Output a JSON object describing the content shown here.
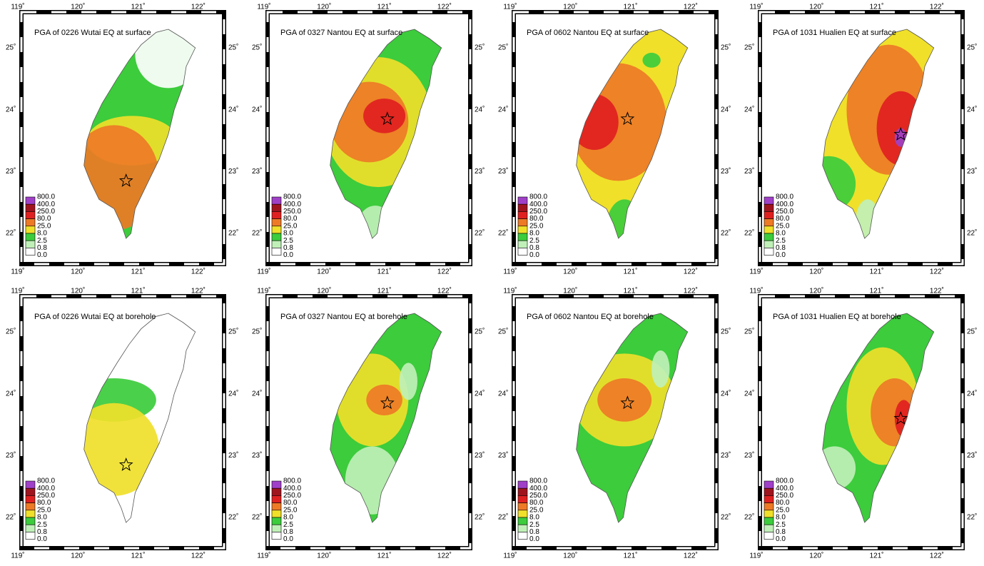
{
  "panels": [
    {
      "title": "PGA of 0226 Wutai EQ at surface"
    },
    {
      "title": "PGA of 0327 Nantou EQ at surface"
    },
    {
      "title": "PGA of 0602 Nantou EQ at surface"
    },
    {
      "title": "PGA of 1031 Hualien EQ at surface"
    },
    {
      "title": "PGA of 0226 Wutai EQ at borehole"
    },
    {
      "title": "PGA of 0327 Nantou EQ at borehole"
    },
    {
      "title": "PGA of 0602 Nantou EQ at borehole"
    },
    {
      "title": "PGA of 1031 Hualien EQ at borehole"
    }
  ],
  "lon_ticks": [
    "119˚",
    "120˚",
    "121˚",
    "122˚"
  ],
  "lat_ticks": [
    "25˚",
    "24˚",
    "23˚",
    "22˚"
  ],
  "colorbar": {
    "labels": [
      "800.0",
      "400.0",
      "250.0",
      "80.0",
      "25.0",
      "8.0",
      "2.5",
      "0.8",
      "0.0"
    ],
    "colors": [
      "#a040c8",
      "#a0141e",
      "#e02020",
      "#ee7a26",
      "#f0e02a",
      "#3ccc3c",
      "#c0f0b8",
      "#ffffff"
    ]
  }
}
